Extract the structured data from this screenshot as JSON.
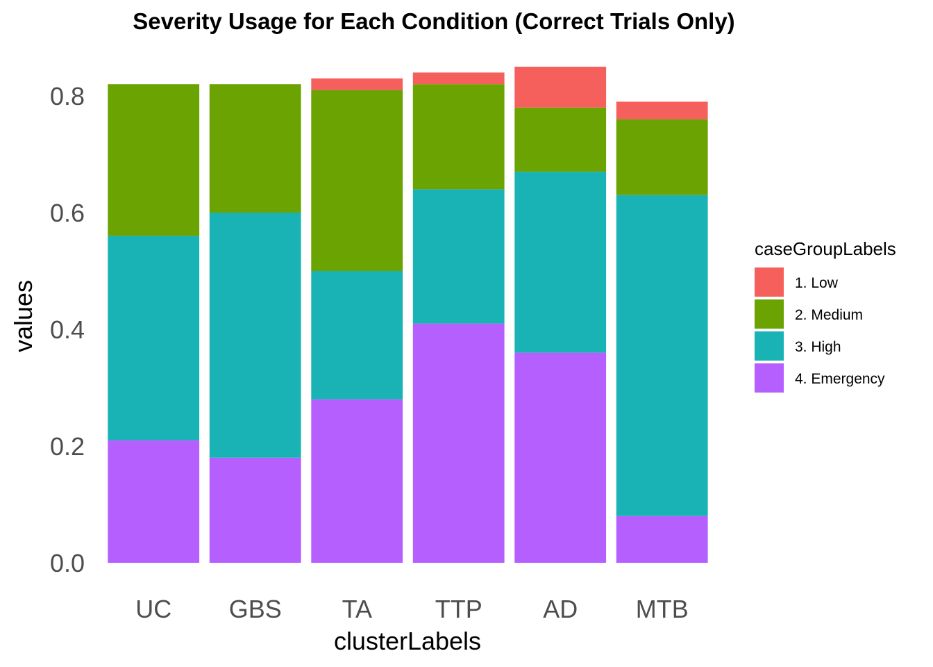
{
  "chart_data": {
    "type": "bar",
    "stacked": true,
    "title": "Severity Usage for Each Condition (Correct Trials Only)",
    "xlabel": "clusterLabels",
    "ylabel": "values",
    "categories": [
      "UC",
      "GBS",
      "TA",
      "TTP",
      "AD",
      "MTB"
    ],
    "ylim": [
      0,
      0.85
    ],
    "yticks": [
      "0.0",
      "0.2",
      "0.4",
      "0.6",
      "0.8"
    ],
    "ytick_values": [
      0.0,
      0.2,
      0.4,
      0.6,
      0.8
    ],
    "grid": false,
    "legend": {
      "title": "caseGroupLabels",
      "position": "right"
    },
    "series": [
      {
        "name": "4. Emergency",
        "color": "#B55FFF",
        "values": [
          0.21,
          0.18,
          0.28,
          0.41,
          0.36,
          0.08
        ]
      },
      {
        "name": "3. High",
        "color": "#19B3B6",
        "values": [
          0.35,
          0.42,
          0.22,
          0.23,
          0.31,
          0.55
        ]
      },
      {
        "name": "2. Medium",
        "color": "#6BA303",
        "values": [
          0.26,
          0.22,
          0.31,
          0.18,
          0.11,
          0.13
        ]
      },
      {
        "name": "1. Low",
        "color": "#F5605C",
        "values": [
          0.0,
          0.0,
          0.02,
          0.02,
          0.07,
          0.03
        ]
      }
    ],
    "legend_order": [
      "1. Low",
      "2. Medium",
      "3. High",
      "4. Emergency"
    ]
  }
}
